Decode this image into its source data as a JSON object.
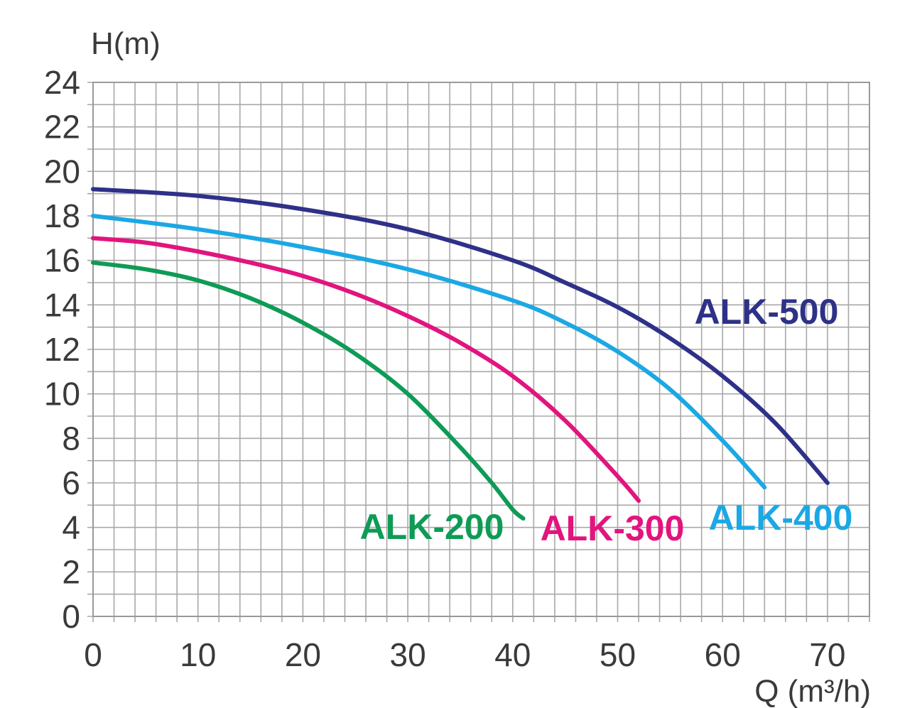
{
  "chart_data": {
    "type": "line",
    "title": "",
    "xlabel": "Q (m³/h)",
    "ylabel": "H(m)",
    "xlim": [
      0,
      74
    ],
    "ylim": [
      0,
      24
    ],
    "grid": true,
    "x_ticks": [
      "0",
      "10",
      "20",
      "30",
      "40",
      "50",
      "60",
      "70"
    ],
    "y_ticks": [
      "0",
      "2",
      "4",
      "6",
      "8",
      "10",
      "12",
      "14",
      "16",
      "18",
      "20",
      "22",
      "24"
    ],
    "series": [
      {
        "name": "ALK-200",
        "color": "#0e9b56",
        "x": [
          0,
          5,
          10,
          15,
          20,
          25,
          30,
          35,
          38,
          40,
          41
        ],
        "y": [
          15.9,
          15.6,
          15.1,
          14.3,
          13.2,
          11.8,
          10.0,
          7.6,
          6.0,
          4.8,
          4.4
        ]
      },
      {
        "name": "ALK-300",
        "color": "#e2147e",
        "x": [
          0,
          5,
          10,
          15,
          20,
          25,
          30,
          35,
          40,
          45,
          50,
          52
        ],
        "y": [
          17.0,
          16.8,
          16.4,
          15.9,
          15.3,
          14.5,
          13.5,
          12.3,
          10.8,
          8.8,
          6.3,
          5.2
        ]
      },
      {
        "name": "ALK-400",
        "color": "#1ba8e4",
        "x": [
          0,
          10,
          20,
          30,
          40,
          45,
          50,
          55,
          60,
          64
        ],
        "y": [
          18.0,
          17.4,
          16.6,
          15.6,
          14.2,
          13.2,
          11.9,
          10.2,
          7.9,
          5.8
        ]
      },
      {
        "name": "ALK-500",
        "color": "#2e3188",
        "x": [
          0,
          10,
          20,
          30,
          40,
          45,
          50,
          55,
          60,
          65,
          70
        ],
        "y": [
          19.2,
          18.9,
          18.3,
          17.4,
          16.0,
          15.0,
          13.9,
          12.5,
          10.8,
          8.7,
          6.0
        ]
      }
    ]
  }
}
